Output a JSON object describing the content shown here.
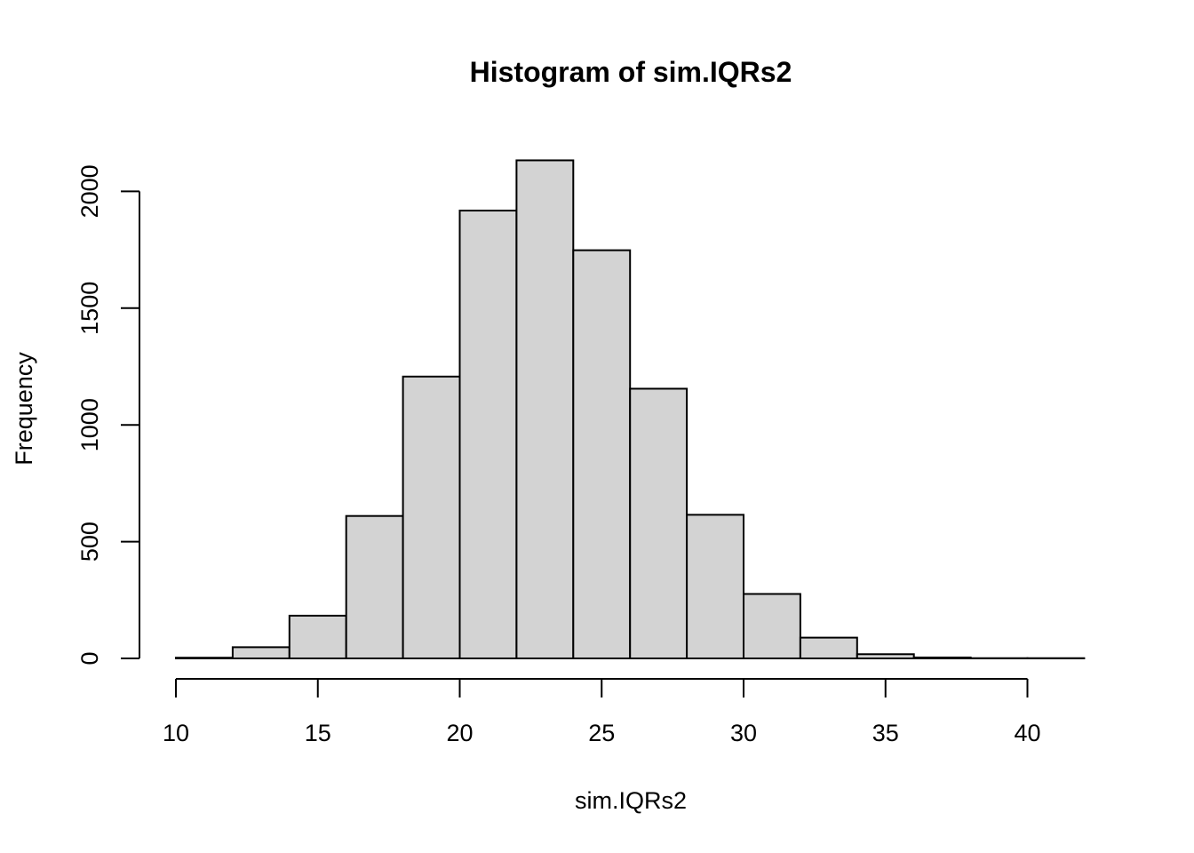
{
  "chart_data": {
    "type": "bar",
    "title": "Histogram of sim.IQRs2",
    "xlabel": "sim.IQRs2",
    "ylabel": "Frequency",
    "bins": [
      {
        "start": 10,
        "end": 12,
        "count": 3
      },
      {
        "start": 12,
        "end": 14,
        "count": 48
      },
      {
        "start": 14,
        "end": 16,
        "count": 183
      },
      {
        "start": 16,
        "end": 18,
        "count": 610
      },
      {
        "start": 18,
        "end": 20,
        "count": 1207
      },
      {
        "start": 20,
        "end": 22,
        "count": 1918
      },
      {
        "start": 22,
        "end": 24,
        "count": 2133
      },
      {
        "start": 24,
        "end": 26,
        "count": 1748
      },
      {
        "start": 26,
        "end": 28,
        "count": 1155
      },
      {
        "start": 28,
        "end": 30,
        "count": 615
      },
      {
        "start": 30,
        "end": 32,
        "count": 276
      },
      {
        "start": 32,
        "end": 34,
        "count": 89
      },
      {
        "start": 34,
        "end": 36,
        "count": 18
      },
      {
        "start": 36,
        "end": 38,
        "count": 4
      },
      {
        "start": 38,
        "end": 40,
        "count": 1
      },
      {
        "start": 40,
        "end": 42,
        "count": 1
      }
    ],
    "xticks": [
      10,
      15,
      20,
      25,
      30,
      35,
      40
    ],
    "yticks": [
      0,
      500,
      1000,
      1500,
      2000
    ],
    "xlim": [
      10,
      42
    ],
    "ylim": [
      0,
      2133
    ],
    "grid": false,
    "colors": {
      "bar_fill": "#d3d3d3",
      "bar_stroke": "#000000"
    }
  }
}
